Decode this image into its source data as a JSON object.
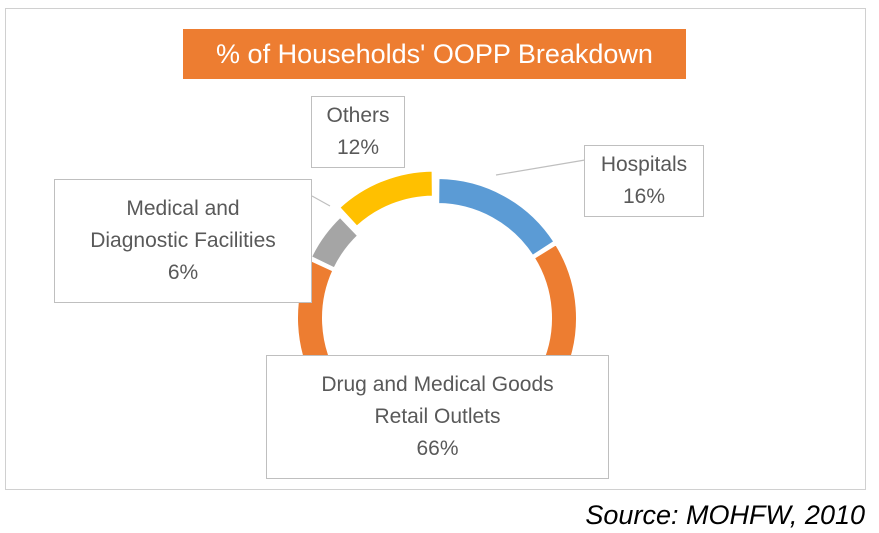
{
  "chart_data": {
    "type": "pie",
    "variant": "donut",
    "title": "% of Households' OOPP Breakdown",
    "categories": [
      "Hospitals",
      "Drug and Medical Goods Retail Outlets",
      "Medical and Diagnostic Facilities",
      "Others"
    ],
    "values": [
      16,
      66,
      6,
      12
    ],
    "unit": "%",
    "colors": [
      "#5b9bd5",
      "#ed7d31",
      "#a5a5a5",
      "#ffc000"
    ],
    "exploded_slice": "Others",
    "legend": "none",
    "labels": [
      {
        "lines": [
          "Hospitals",
          "16%"
        ]
      },
      {
        "lines": [
          "Drug and Medical Goods",
          "Retail Outlets",
          "66%"
        ]
      },
      {
        "lines": [
          "Medical and",
          "Diagnostic Facilities",
          "6%"
        ]
      },
      {
        "lines": [
          "Others",
          "12%"
        ]
      }
    ]
  },
  "source": "Source: MOHFW, 2010"
}
